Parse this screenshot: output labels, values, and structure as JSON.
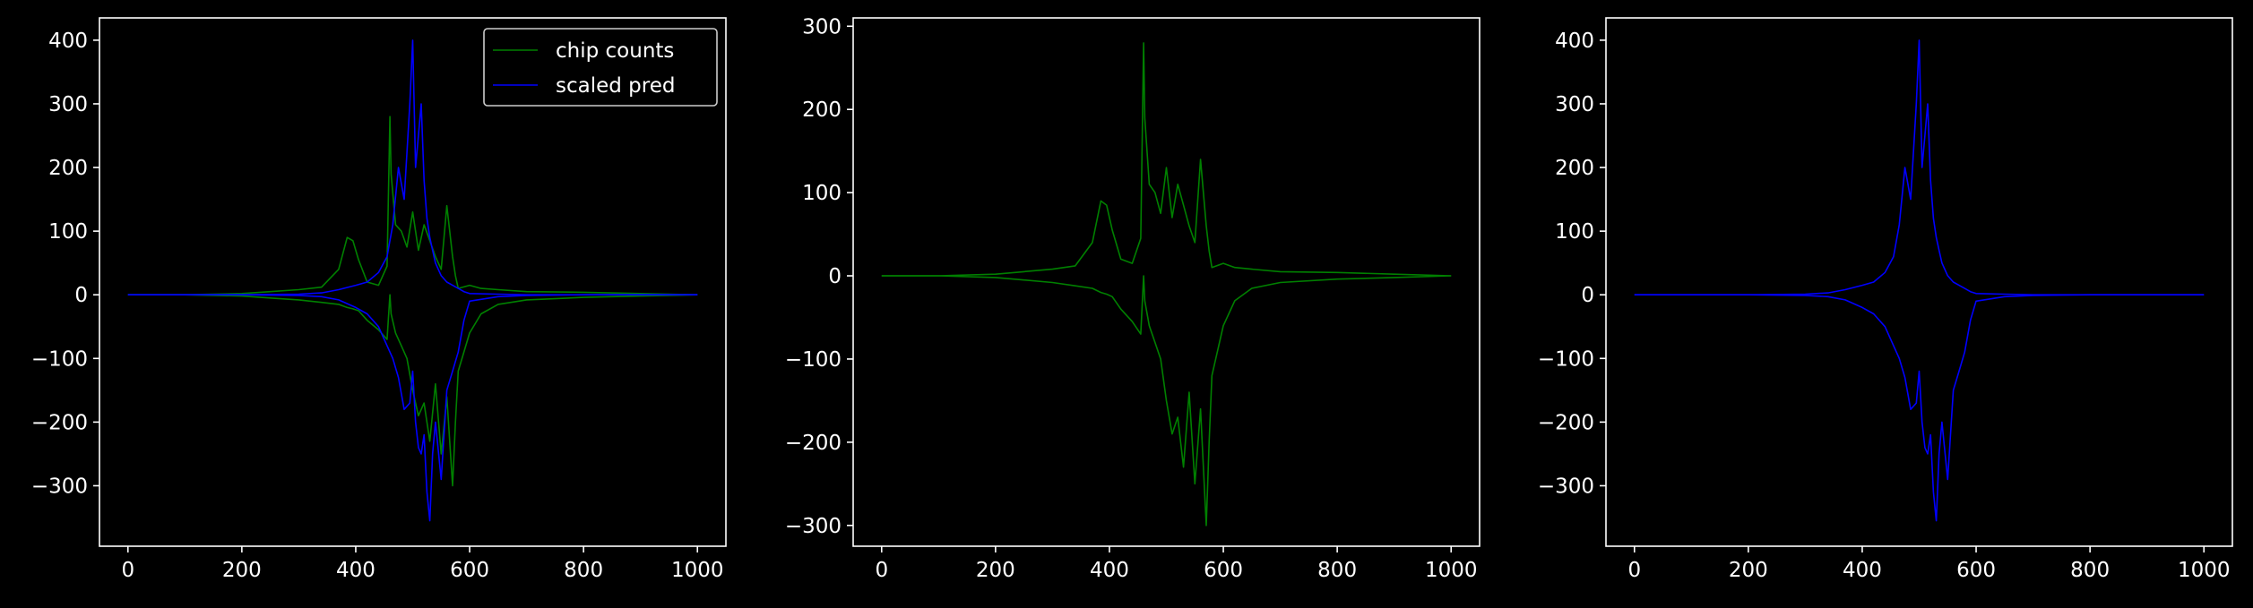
{
  "chart_data": [
    {
      "type": "line",
      "xlim": [
        -50,
        1050
      ],
      "ylim": [
        -395,
        435
      ],
      "xticks": [
        0,
        200,
        400,
        600,
        800,
        1000
      ],
      "yticks": [
        -300,
        -200,
        -100,
        0,
        100,
        200,
        300,
        400
      ],
      "legend": {
        "placement": "top-right",
        "entries": [
          "chip counts",
          "scaled pred"
        ]
      },
      "grid": false,
      "series": [
        {
          "name": "chip counts",
          "color": "#008000",
          "x": [
            0,
            100,
            200,
            250,
            300,
            340,
            370,
            385,
            395,
            405,
            420,
            440,
            455,
            460,
            462,
            470,
            480,
            490,
            500,
            510,
            520,
            530,
            540,
            550,
            560,
            570,
            575,
            580,
            600,
            620,
            650,
            700,
            800,
            900,
            1000
          ],
          "y": [
            0,
            0,
            2,
            5,
            8,
            12,
            40,
            90,
            85,
            55,
            20,
            15,
            45,
            280,
            190,
            110,
            100,
            75,
            130,
            70,
            110,
            85,
            60,
            40,
            140,
            60,
            30,
            10,
            15,
            10,
            8,
            5,
            4,
            2,
            0
          ],
          "y_neg": [
            0,
            0,
            -2,
            -5,
            -8,
            -12,
            -15,
            -20,
            -22,
            -25,
            -40,
            -55,
            -70,
            0,
            -30,
            -60,
            -80,
            -100,
            -150,
            -190,
            -170,
            -230,
            -140,
            -250,
            -160,
            -300,
            -200,
            -120,
            -60,
            -30,
            -15,
            -8,
            -4,
            -2,
            0
          ]
        },
        {
          "name": "scaled pred",
          "color": "#0000ff",
          "x": [
            0,
            100,
            200,
            300,
            340,
            370,
            400,
            420,
            440,
            455,
            465,
            475,
            485,
            495,
            500,
            505,
            510,
            515,
            520,
            525,
            530,
            535,
            540,
            550,
            560,
            570,
            580,
            590,
            600,
            650,
            700,
            800,
            1000
          ],
          "y": [
            0,
            0,
            0,
            1,
            3,
            8,
            15,
            20,
            35,
            60,
            110,
            200,
            150,
            300,
            400,
            200,
            250,
            300,
            180,
            120,
            90,
            70,
            50,
            30,
            20,
            15,
            10,
            5,
            2,
            1,
            0,
            0,
            0
          ],
          "y_neg": [
            0,
            0,
            0,
            -1,
            -3,
            -8,
            -20,
            -30,
            -50,
            -80,
            -100,
            -130,
            -180,
            -170,
            -120,
            -200,
            -240,
            -250,
            -220,
            -310,
            -355,
            -250,
            -200,
            -290,
            -150,
            -120,
            -90,
            -40,
            -10,
            -3,
            -1,
            0,
            0
          ]
        }
      ]
    },
    {
      "type": "line",
      "xlim": [
        -50,
        1050
      ],
      "ylim": [
        -325,
        310
      ],
      "xticks": [
        0,
        200,
        400,
        600,
        800,
        1000
      ],
      "yticks": [
        -300,
        -200,
        -100,
        0,
        100,
        200,
        300
      ],
      "grid": false,
      "series": [
        {
          "color": "#008000",
          "x": [
            0,
            100,
            200,
            250,
            300,
            340,
            370,
            385,
            395,
            405,
            420,
            440,
            455,
            460,
            462,
            470,
            480,
            490,
            500,
            510,
            520,
            530,
            540,
            550,
            560,
            570,
            575,
            580,
            600,
            620,
            650,
            700,
            800,
            900,
            1000
          ],
          "y": [
            0,
            0,
            2,
            5,
            8,
            12,
            40,
            90,
            85,
            55,
            20,
            15,
            45,
            280,
            190,
            110,
            100,
            75,
            130,
            70,
            110,
            85,
            60,
            40,
            140,
            60,
            30,
            10,
            15,
            10,
            8,
            5,
            4,
            2,
            0
          ],
          "y_neg": [
            0,
            0,
            -2,
            -5,
            -8,
            -12,
            -15,
            -20,
            -22,
            -25,
            -40,
            -55,
            -70,
            0,
            -30,
            -60,
            -80,
            -100,
            -150,
            -190,
            -170,
            -230,
            -140,
            -250,
            -160,
            -300,
            -200,
            -120,
            -60,
            -30,
            -15,
            -8,
            -4,
            -2,
            0
          ]
        }
      ]
    },
    {
      "type": "line",
      "xlim": [
        -50,
        1050
      ],
      "ylim": [
        -395,
        435
      ],
      "xticks": [
        0,
        200,
        400,
        600,
        800,
        1000
      ],
      "yticks": [
        -300,
        -200,
        -100,
        0,
        100,
        200,
        300,
        400
      ],
      "grid": false,
      "series": [
        {
          "color": "#0000ff",
          "x": [
            0,
            100,
            200,
            300,
            340,
            370,
            400,
            420,
            440,
            455,
            465,
            475,
            485,
            495,
            500,
            505,
            510,
            515,
            520,
            525,
            530,
            535,
            540,
            550,
            560,
            570,
            580,
            590,
            600,
            650,
            700,
            800,
            1000
          ],
          "y": [
            0,
            0,
            0,
            1,
            3,
            8,
            15,
            20,
            35,
            60,
            110,
            200,
            150,
            300,
            400,
            200,
            250,
            300,
            180,
            120,
            90,
            70,
            50,
            30,
            20,
            15,
            10,
            5,
            2,
            1,
            0,
            0,
            0
          ],
          "y_neg": [
            0,
            0,
            0,
            -1,
            -3,
            -8,
            -20,
            -30,
            -50,
            -80,
            -100,
            -130,
            -180,
            -170,
            -120,
            -200,
            -240,
            -250,
            -220,
            -310,
            -355,
            -250,
            -200,
            -290,
            -150,
            -120,
            -90,
            -40,
            -10,
            -3,
            -1,
            0,
            0
          ]
        }
      ]
    }
  ],
  "colors": {
    "background": "#000000",
    "axes": "#ffffff",
    "text": "#ffffff"
  }
}
